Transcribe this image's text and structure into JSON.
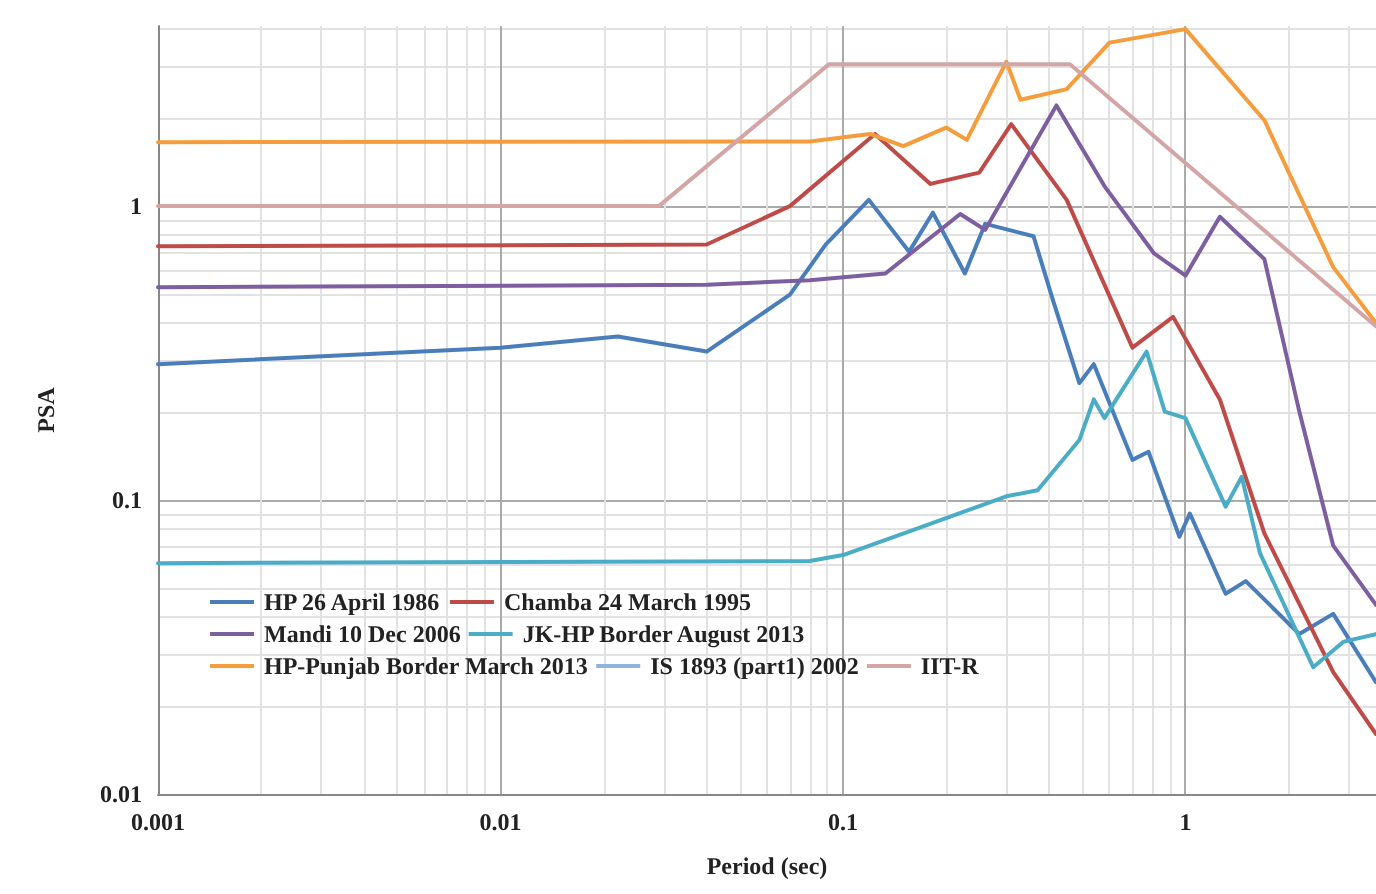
{
  "chart_data": {
    "type": "line",
    "xlabel": "Period (sec)",
    "ylabel": "PSA",
    "log": "xy",
    "grid": true,
    "legend": "bottom left",
    "marker": "none",
    "line_style": "solid",
    "xlim": [
      0.001,
      3.6
    ],
    "xticks": [
      0.001,
      0.01,
      0.1,
      1
    ],
    "ylim": [
      0.01,
      4.1
    ],
    "yticks": [
      0.01,
      0.1,
      1
    ],
    "series": [
      {
        "name": "HP 26 April 1986",
        "color": "#4a7ebb",
        "x": [
          0.001,
          0.01,
          0.022,
          0.04,
          0.07,
          0.089,
          0.119,
          0.156,
          0.183,
          0.227,
          0.26,
          0.36,
          0.41,
          0.49,
          0.54,
          0.7,
          0.78,
          0.96,
          1.03,
          1.31,
          1.5,
          2.15,
          2.7,
          3.6
        ],
        "values": [
          0.29,
          0.33,
          0.36,
          0.32,
          0.5,
          0.74,
          1.05,
          0.7,
          0.95,
          0.59,
          0.87,
          0.79,
          0.48,
          0.25,
          0.29,
          0.137,
          0.146,
          0.075,
          0.09,
          0.048,
          0.053,
          0.035,
          0.041,
          0.024
        ]
      },
      {
        "name": "Chamba 24 March 1995",
        "color": "#be4b48",
        "x": [
          0.001,
          0.04,
          0.07,
          0.124,
          0.18,
          0.25,
          0.31,
          0.45,
          0.7,
          0.92,
          1.26,
          1.7,
          2.7,
          3.6
        ],
        "values": [
          0.73,
          0.74,
          1.0,
          1.76,
          1.19,
          1.3,
          1.9,
          1.05,
          0.33,
          0.42,
          0.22,
          0.077,
          0.026,
          0.016
        ]
      },
      {
        "name": "Mandi 10 Dec 2006",
        "color": "#7d5fa0",
        "x": [
          0.001,
          0.04,
          0.08,
          0.133,
          0.22,
          0.26,
          0.42,
          0.58,
          0.81,
          1.0,
          1.26,
          1.7,
          2.15,
          2.7,
          3.6
        ],
        "values": [
          0.53,
          0.54,
          0.56,
          0.59,
          0.94,
          0.83,
          2.2,
          1.17,
          0.69,
          0.58,
          0.92,
          0.66,
          0.2,
          0.07,
          0.044
        ]
      },
      {
        "name": "JK-HP Border August 2013",
        "color": "#4bacc6",
        "x": [
          0.001,
          0.08,
          0.1,
          0.16,
          0.3,
          0.37,
          0.49,
          0.54,
          0.58,
          0.77,
          0.87,
          1.0,
          1.31,
          1.46,
          1.65,
          2.36,
          2.9,
          3.6
        ],
        "values": [
          0.061,
          0.062,
          0.065,
          0.079,
          0.103,
          0.108,
          0.16,
          0.22,
          0.19,
          0.32,
          0.2,
          0.19,
          0.095,
          0.12,
          0.066,
          0.027,
          0.033,
          0.035
        ]
      },
      {
        "name": "HP-Punjab Border March 2013",
        "color": "#f59d3d",
        "x": [
          0.001,
          0.08,
          0.12,
          0.15,
          0.2,
          0.23,
          0.3,
          0.33,
          0.45,
          0.6,
          1.0,
          1.7,
          2.7,
          3.6
        ],
        "values": [
          1.65,
          1.66,
          1.76,
          1.6,
          1.85,
          1.68,
          3.1,
          2.3,
          2.5,
          3.6,
          4.0,
          1.96,
          0.62,
          0.4
        ]
      },
      {
        "name": "IS 1893 (part1) 2002",
        "color": "#8fb4de"
      },
      {
        "name": "IIT-R",
        "color": "#d4a5a5",
        "x": [
          0.001,
          0.029,
          0.091,
          0.46,
          3.6
        ],
        "values": [
          1.0,
          1.0,
          3.04,
          3.04,
          0.39
        ]
      }
    ]
  }
}
